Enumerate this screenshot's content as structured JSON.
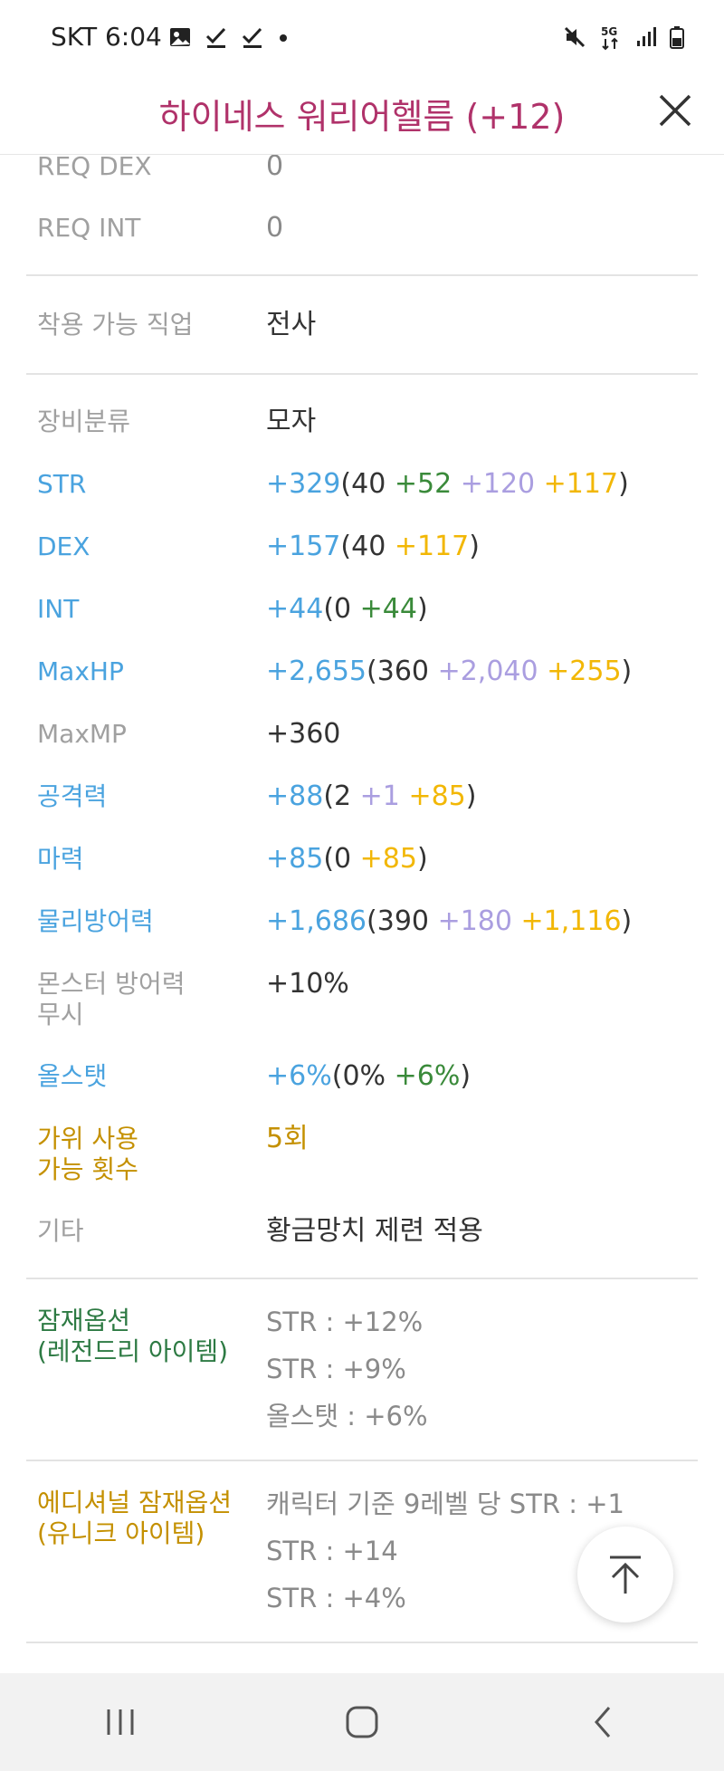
{
  "status_bar": {
    "carrier": "SKT",
    "time": "6:04"
  },
  "header": {
    "title": "하이네스 워리어헬름 (+12)"
  },
  "requirements": [
    {
      "label": "REQ DEX",
      "value": "0"
    },
    {
      "label": "REQ INT",
      "value": "0"
    }
  ],
  "job": {
    "label": "착용 가능 직업",
    "value": "전사"
  },
  "stats": {
    "category": {
      "label": "장비분류",
      "value": "모자"
    },
    "str": {
      "label": "STR",
      "total": "+329",
      "open": "(",
      "base": "40",
      "s1": "+52",
      "s2": "+120",
      "s3": "+117",
      "close": ")"
    },
    "dex": {
      "label": "DEX",
      "total": "+157",
      "open": "(",
      "base": "40",
      "s1": "+117",
      "close": ")"
    },
    "int": {
      "label": "INT",
      "total": "+44",
      "open": "(",
      "base": "0",
      "s1": "+44",
      "close": ")"
    },
    "maxhp": {
      "label": "MaxHP",
      "total": "+2,655",
      "open": "(",
      "base": "360",
      "s1": "+2,040",
      "s2": "+255",
      "close": ")"
    },
    "maxmp": {
      "label": "MaxMP",
      "value": "+360"
    },
    "attack": {
      "label": "공격력",
      "total": "+88",
      "open": "(",
      "base": "2",
      "s1": "+1",
      "s2": "+85",
      "close": ")"
    },
    "magic": {
      "label": "마력",
      "total": "+85",
      "open": "(",
      "base": "0",
      "s1": "+85",
      "close": ")"
    },
    "defense": {
      "label": "물리방어력",
      "total": "+1,686",
      "open": "(",
      "base": "390",
      "s1": "+180",
      "s2": "+1,116",
      "close": ")"
    },
    "ignore_def": {
      "label_line1": "몬스터 방어력",
      "label_line2": "무시",
      "value": "+10%"
    },
    "allstat": {
      "label": "올스탯",
      "total": "+6%",
      "open": "(",
      "base": "0%",
      "s1": "+6%",
      "close": ")"
    },
    "scissors": {
      "label_line1": "가위 사용",
      "label_line2": "가능 횟수",
      "value": "5회"
    },
    "etc": {
      "label": "기타",
      "value": "황금망치 제련 적용"
    }
  },
  "potential": {
    "label_line1": "잠재옵션",
    "label_line2": "(레전드리 아이템)",
    "lines": [
      "STR : +12%",
      "STR : +9%",
      "올스탯 : +6%"
    ]
  },
  "additional": {
    "label_line1": "에디셔널 잠재옵션",
    "label_line2": "(유니크 아이템)",
    "lines": [
      "캐릭터 기준 9레벨 당 STR : +1",
      "STR : +14",
      "STR : +4%"
    ]
  },
  "colors": {
    "title": "#b0326a",
    "stat_blue": "#4aa3df",
    "green": "#3a8a3a",
    "purple": "#aa9ee0",
    "yellow": "#f2b705",
    "gold": "#c49000"
  }
}
